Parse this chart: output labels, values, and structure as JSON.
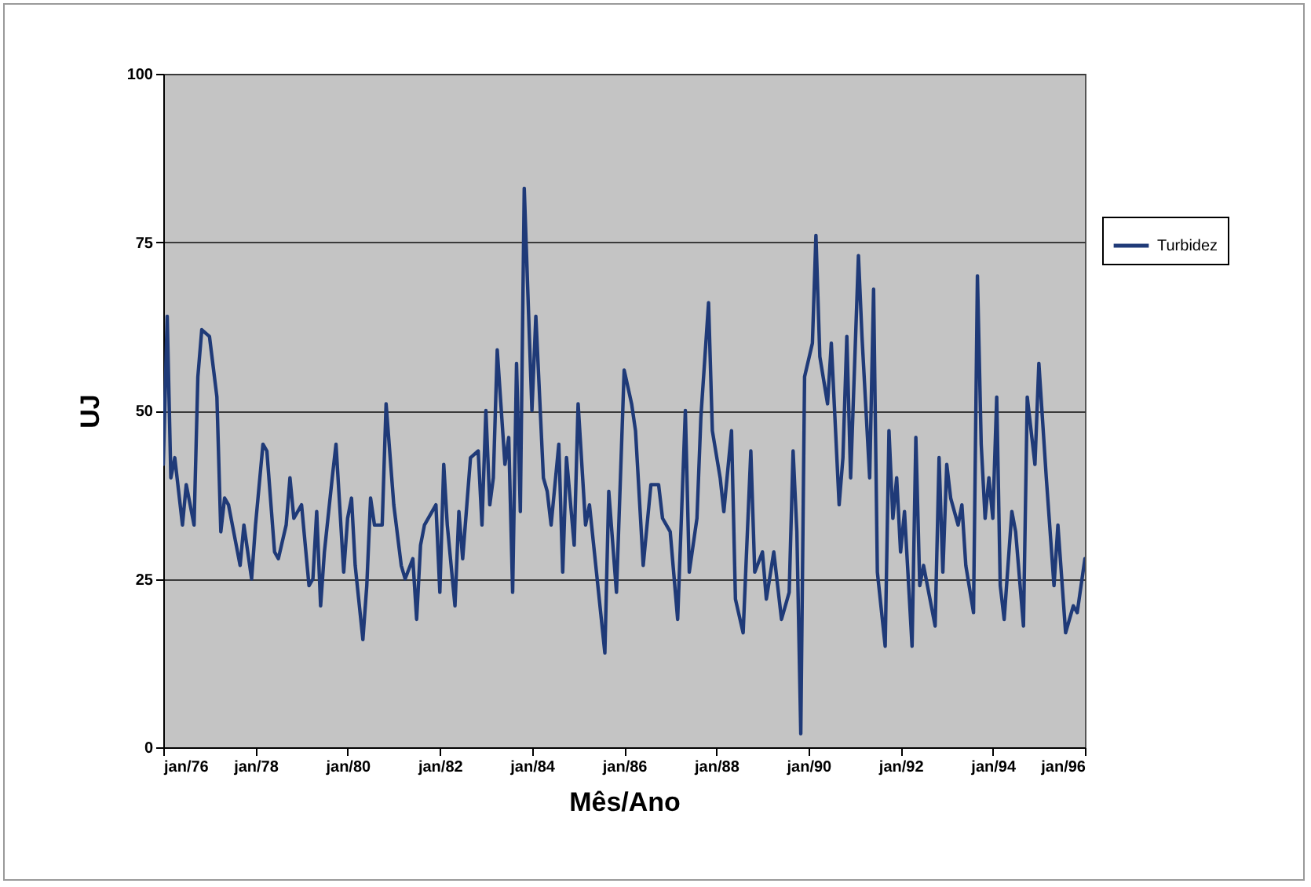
{
  "chart_data": {
    "type": "line",
    "xlabel": "Mês/Ano",
    "ylabel": "UJ",
    "x": [
      "1976-01",
      "1976-02",
      "1976-03",
      "1976-04",
      "1976-06",
      "1976-07",
      "1976-09",
      "1976-10",
      "1976-11",
      "1977-01",
      "1977-03",
      "1977-04",
      "1977-05",
      "1977-06",
      "1977-09",
      "1977-10",
      "1977-12",
      "1978-01",
      "1978-03",
      "1978-04",
      "1978-06",
      "1978-07",
      "1978-09",
      "1978-10",
      "1978-11",
      "1979-01",
      "1979-03",
      "1979-04",
      "1979-05",
      "1979-06",
      "1979-07",
      "1979-09",
      "1979-10",
      "1979-12",
      "1980-01",
      "1980-02",
      "1980-03",
      "1980-05",
      "1980-06",
      "1980-07",
      "1980-08",
      "1980-10",
      "1980-11",
      "1981-01",
      "1981-03",
      "1981-04",
      "1981-06",
      "1981-07",
      "1981-08",
      "1981-09",
      "1981-12",
      "1982-01",
      "1982-02",
      "1982-03",
      "1982-05",
      "1982-06",
      "1982-07",
      "1982-09",
      "1982-11",
      "1982-12",
      "1983-01",
      "1983-02",
      "1983-03",
      "1983-04",
      "1983-06",
      "1983-07",
      "1983-08",
      "1983-09",
      "1983-10",
      "1983-11",
      "1984-01",
      "1984-02",
      "1984-04",
      "1984-05",
      "1984-06",
      "1984-08",
      "1984-09",
      "1984-10",
      "1984-12",
      "1985-01",
      "1985-03",
      "1985-04",
      "1985-06",
      "1985-08",
      "1985-09",
      "1985-11",
      "1986-01",
      "1986-03",
      "1986-04",
      "1986-06",
      "1986-08",
      "1986-10",
      "1986-11",
      "1987-01",
      "1987-03",
      "1987-05",
      "1987-06",
      "1987-08",
      "1987-09",
      "1987-11",
      "1987-12",
      "1988-02",
      "1988-03",
      "1988-05",
      "1988-06",
      "1988-08",
      "1988-10",
      "1988-11",
      "1989-01",
      "1989-02",
      "1989-04",
      "1989-06",
      "1989-08",
      "1989-09",
      "1989-10",
      "1989-11",
      "1989-12",
      "1990-02",
      "1990-03",
      "1990-04",
      "1990-06",
      "1990-07",
      "1990-09",
      "1990-10",
      "1990-11",
      "1990-12",
      "1991-02",
      "1991-03",
      "1991-05",
      "1991-06",
      "1991-07",
      "1991-09",
      "1991-10",
      "1991-11",
      "1991-12",
      "1992-01",
      "1992-02",
      "1992-04",
      "1992-05",
      "1992-06",
      "1992-07",
      "1992-10",
      "1992-11",
      "1992-12",
      "1993-01",
      "1993-02",
      "1993-04",
      "1993-05",
      "1993-06",
      "1993-08",
      "1993-09",
      "1993-10",
      "1993-11",
      "1993-12",
      "1994-01",
      "1994-02",
      "1994-03",
      "1994-04",
      "1994-06",
      "1994-07",
      "1994-09",
      "1994-10",
      "1994-12",
      "1995-01",
      "1995-03",
      "1995-05",
      "1995-06",
      "1995-08",
      "1995-10",
      "1995-11",
      "1996-01"
    ],
    "series": [
      {
        "name": "Turbidez",
        "color": "#1f3a78",
        "values": [
          42,
          64,
          40,
          43,
          33,
          39,
          33,
          55,
          62,
          61,
          52,
          32,
          37,
          36,
          27,
          33,
          25,
          33,
          45,
          44,
          29,
          28,
          33,
          40,
          34,
          36,
          24,
          25,
          35,
          21,
          29,
          40,
          45,
          26,
          34,
          37,
          27,
          16,
          24,
          37,
          33,
          33,
          51,
          36,
          27,
          25,
          28,
          19,
          30,
          33,
          36,
          23,
          42,
          33,
          21,
          35,
          28,
          43,
          44,
          33,
          50,
          36,
          40,
          59,
          42,
          46,
          23,
          57,
          35,
          83,
          50,
          64,
          40,
          38,
          33,
          45,
          26,
          43,
          30,
          51,
          33,
          36,
          25,
          14,
          38,
          23,
          56,
          51,
          47,
          27,
          39,
          39,
          34,
          32,
          19,
          50,
          26,
          34,
          49,
          66,
          47,
          40,
          35,
          47,
          22,
          17,
          44,
          26,
          29,
          22,
          29,
          19,
          23,
          44,
          32,
          2,
          55,
          60,
          76,
          58,
          51,
          60,
          36,
          43,
          61,
          40,
          73,
          61,
          40,
          68,
          26,
          15,
          47,
          34,
          40,
          29,
          35,
          15,
          46,
          24,
          27,
          18,
          43,
          26,
          42,
          37,
          33,
          36,
          27,
          20,
          70,
          45,
          34,
          40,
          34,
          52,
          24,
          19,
          35,
          32,
          18,
          52,
          42,
          57,
          40,
          24,
          33,
          17,
          21,
          20,
          28
        ]
      }
    ],
    "xlim": [
      "1976-01",
      "1996-01"
    ],
    "xticks": [
      {
        "value": "1976-01",
        "label": "jan/76"
      },
      {
        "value": "1978-01",
        "label": "jan/78"
      },
      {
        "value": "1980-01",
        "label": "jan/80"
      },
      {
        "value": "1982-01",
        "label": "jan/82"
      },
      {
        "value": "1984-01",
        "label": "jan/84"
      },
      {
        "value": "1986-01",
        "label": "jan/86"
      },
      {
        "value": "1988-01",
        "label": "jan/88"
      },
      {
        "value": "1990-01",
        "label": "jan/90"
      },
      {
        "value": "1992-01",
        "label": "jan/92"
      },
      {
        "value": "1994-01",
        "label": "jan/94"
      },
      {
        "value": "1996-01",
        "label": "jan/96"
      }
    ],
    "ylim": [
      0,
      100
    ],
    "yticks": [
      0,
      25,
      50,
      75,
      100
    ],
    "grid": "y",
    "legend": "right"
  }
}
